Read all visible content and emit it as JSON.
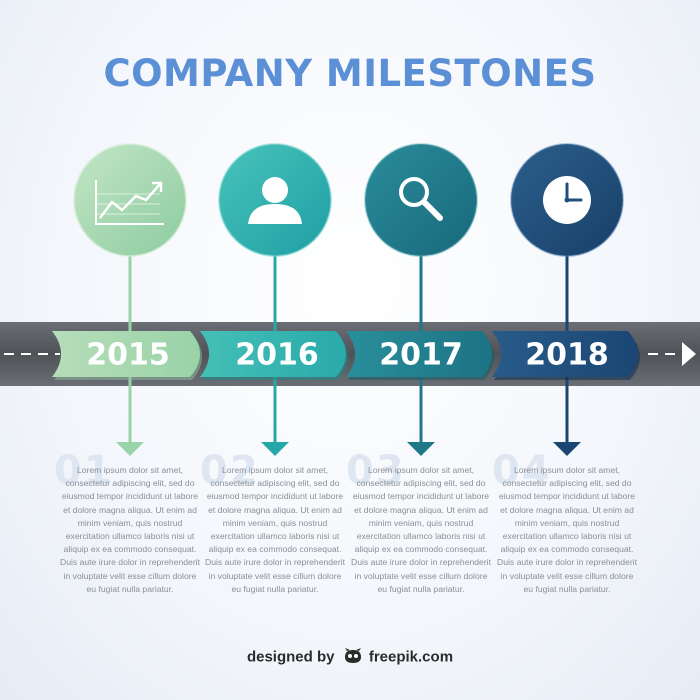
{
  "title": "COMPANY MILESTONES",
  "milestones": [
    {
      "year": "2015",
      "number": "01",
      "icon": "line-chart-icon",
      "color": "#a7d7b0",
      "text": "Lorem ipsum dolor sit amet, consectetur adipiscing elit, sed do eiusmod tempor incididunt ut labore et dolore magna aliqua. Ut enim ad minim veniam, quis nostrud exercitation ullamco laboris nisi ut aliquip ex ea commodo consequat. Duis aute irure dolor in reprehenderit in voluptate velit esse cillum dolore eu fugiat nulla pariatur."
    },
    {
      "year": "2016",
      "number": "02",
      "icon": "user-icon",
      "color": "#2fb5b0",
      "text": "Lorem ipsum dolor sit amet, consectetur adipiscing elit, sed do eiusmod tempor incididunt ut labore et dolore magna aliqua. Ut enim ad minim veniam, quis nostrud exercitation ullamco laboris nisi ut aliquip ex ea commodo consequat. Duis aute irure dolor in reprehenderit in voluptate velit esse cillum dolore eu fugiat nulla pariatur."
    },
    {
      "year": "2017",
      "number": "03",
      "icon": "magnifier-icon",
      "color": "#1f7f8e",
      "text": "Lorem ipsum dolor sit amet, consectetur adipiscing elit, sed do eiusmod tempor incididunt ut labore et dolore magna aliqua. Ut enim ad minim veniam, quis nostrud exercitation ullamco laboris nisi ut aliquip ex ea commodo consequat. Duis aute irure dolor in reprehenderit in voluptate velit esse cillum dolore eu fugiat nulla pariatur."
    },
    {
      "year": "2018",
      "number": "04",
      "icon": "clock-icon",
      "color": "#1f4f7f",
      "text": "Lorem ipsum dolor sit amet, consectetur adipiscing elit, sed do eiusmod tempor incididunt ut labore et dolore magna aliqua. Ut enim ad minim veniam, quis nostrud exercitation ullamco laboris nisi ut aliquip ex ea commodo consequat. Duis aute irure dolor in reprehenderit in voluptate velit esse cillum dolore eu fugiat nulla pariatur."
    }
  ],
  "footer": {
    "prefix": "designed by",
    "brand": "freepik.com",
    "logo_icon": "freepik-logo-icon"
  },
  "colors": {
    "title": "#5b8fd6",
    "road": "#5d6066",
    "road_dash": "#ffffff",
    "text": "#8a8f98"
  }
}
